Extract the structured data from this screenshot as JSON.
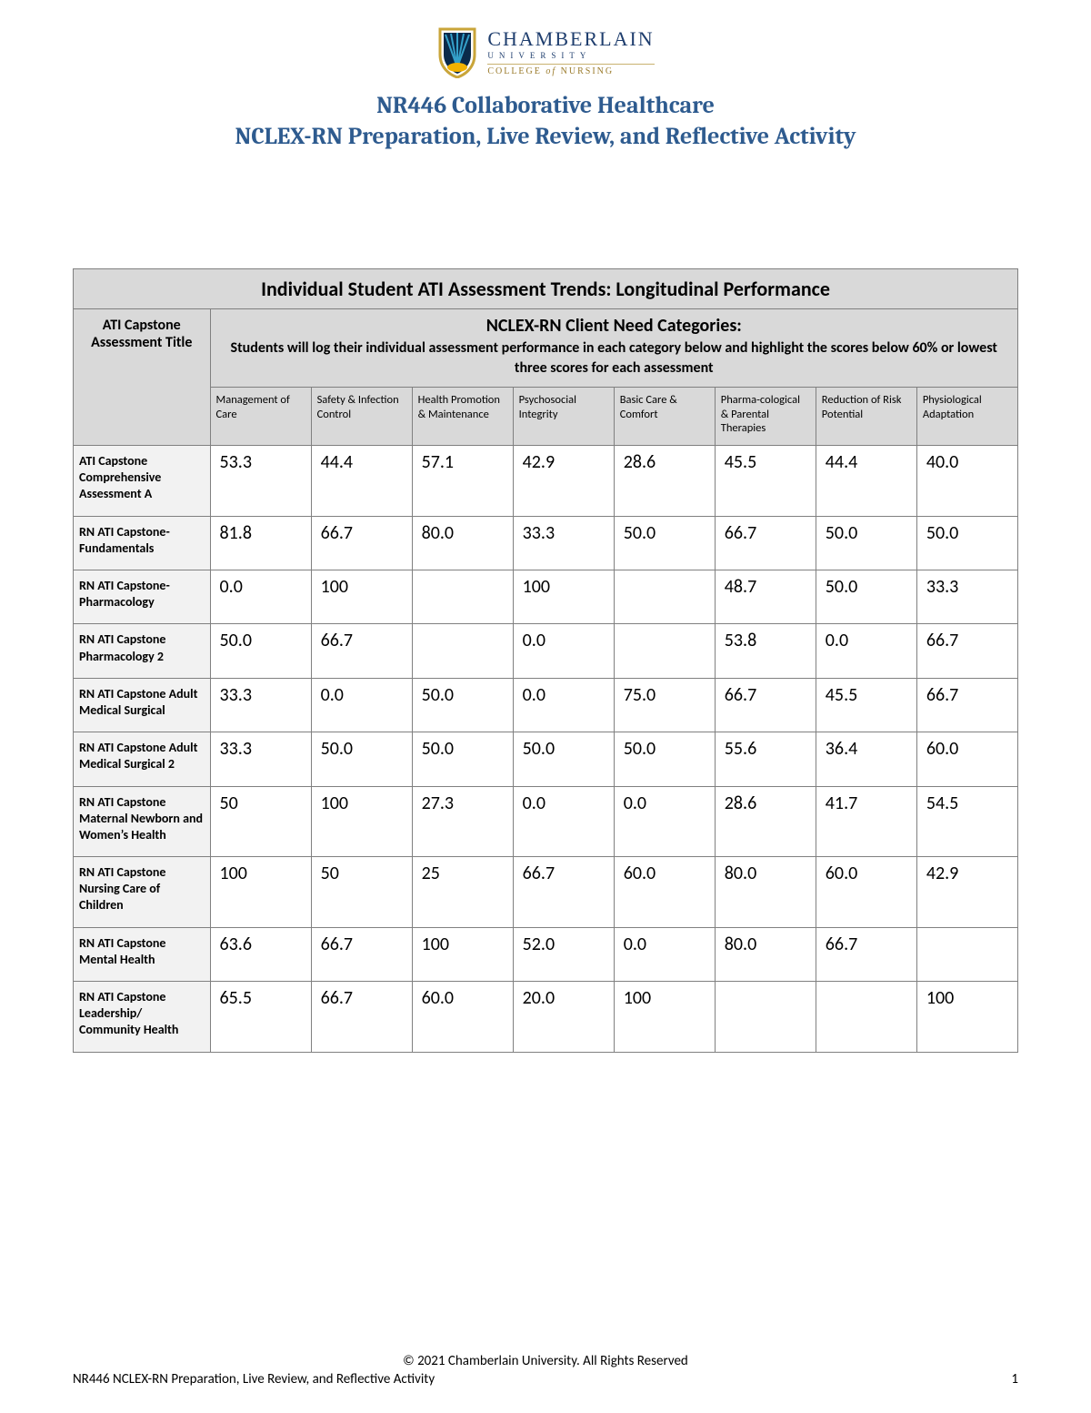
{
  "logo": {
    "name": "CHAMBERLAIN",
    "sub": "UNIVERSITY",
    "college_prefix": "COLLEGE ",
    "college_italic": "of",
    "college_suffix": " NURSING",
    "shield_border": "#c9a53a",
    "shield_field": "#0a2a4a",
    "shield_rays": "#34a0c9",
    "shield_sun": "#f2b200"
  },
  "title_line1": "NR446 Collaborative Healthcare",
  "title_line2": "NCLEX-RN Preparation, Live Review, and Reflective Activity",
  "table": {
    "main_header": "Individual Student ATI Assessment Trends: Longitudinal Performance",
    "rowlabel_header": "ATI Capstone Assessment Title",
    "cat_title": "NCLEX-RN Client Need Categories:",
    "cat_desc": "Students will log their individual assessment performance in each category below and highlight the scores below 60% or lowest three scores for each assessment",
    "columns": [
      "Management of Care",
      "Safety & Infection Control",
      "Health Promotion & Maintenance",
      "Psychosocial Integrity",
      "Basic Care & Comfort",
      "Pharma-cological & Parental Therapies",
      "Reduction of Risk Potential",
      "Physiological Adaptation"
    ],
    "col_widths": [
      "14.5%",
      "10.7%",
      "10.7%",
      "10.7%",
      "10.7%",
      "10.7%",
      "10.7%",
      "10.7%",
      "10.7%"
    ],
    "rows": [
      {
        "label": "ATI Capstone Comprehensive Assessment A",
        "cells": [
          "53.3",
          "44.4",
          "57.1",
          "42.9",
          "28.6",
          "45.5",
          "44.4",
          "40.0"
        ]
      },
      {
        "label": "RN ATI Capstone- Fundamentals",
        "cells": [
          "81.8",
          "66.7",
          "80.0",
          "33.3",
          "50.0",
          "66.7",
          "50.0",
          "50.0"
        ]
      },
      {
        "label": "RN ATI Capstone- Pharmacology",
        "cells": [
          "0.0",
          "100",
          "",
          "100",
          "",
          "48.7",
          "50.0",
          "33.3"
        ]
      },
      {
        "label": "RN ATI Capstone Pharmacology 2",
        "cells": [
          "50.0",
          "66.7",
          "",
          "0.0",
          "",
          "53.8",
          "0.0",
          "66.7"
        ]
      },
      {
        "label": "RN ATI Capstone Adult Medical Surgical",
        "cells": [
          "33.3",
          "0.0",
          "50.0",
          "0.0",
          "75.0",
          "66.7",
          "45.5",
          "66.7"
        ]
      },
      {
        "label": "RN ATI Capstone Adult Medical Surgical 2",
        "cells": [
          "33.3",
          "50.0",
          "50.0",
          "50.0",
          "50.0",
          "55.6",
          "36.4",
          "60.0"
        ]
      },
      {
        "label": "RN ATI Capstone Maternal Newborn and Women’s Health",
        "cells": [
          "50",
          "100",
          "27.3",
          "0.0",
          "0.0",
          "28.6",
          "41.7",
          "54.5"
        ]
      },
      {
        "label": "RN ATI Capstone Nursing Care of Children",
        "cells": [
          "100",
          "50",
          "25",
          "66.7",
          "60.0",
          "80.0",
          "60.0",
          "42.9"
        ]
      },
      {
        "label": "RN ATI Capstone Mental Health",
        "cells": [
          "63.6",
          "66.7",
          "100",
          "52.0",
          "0.0",
          "80.0",
          "66.7",
          ""
        ]
      },
      {
        "label": "RN ATI Capstone Leadership/ Community Health",
        "cells": [
          "65.5",
          "66.7",
          "60.0",
          "20.0",
          "100",
          "",
          "",
          "100"
        ]
      }
    ]
  },
  "footer": {
    "copyright": "© 2021 Chamberlain University. All Rights Reserved",
    "left": "NR446 NCLEX-RN Preparation, Live Review, and Reflective Activity",
    "page": "1"
  }
}
